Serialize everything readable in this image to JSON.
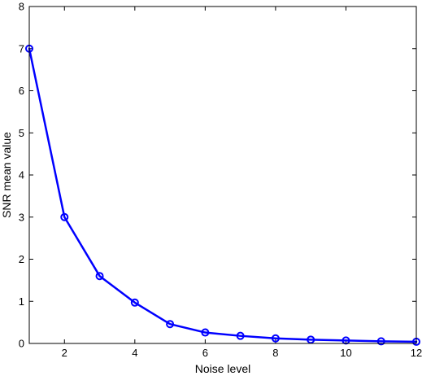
{
  "chart_data": {
    "type": "line",
    "title": "",
    "xlabel": "Noise level",
    "ylabel": "SNR mean value",
    "x": [
      1,
      2,
      3,
      4,
      5,
      6,
      7,
      8,
      9,
      10,
      11,
      12
    ],
    "series": [
      {
        "values": [
          7.0,
          3.0,
          1.6,
          0.97,
          0.46,
          0.26,
          0.18,
          0.12,
          0.09,
          0.07,
          0.05,
          0.04
        ],
        "color": "#0000ff",
        "marker": "circle"
      }
    ],
    "xlim": [
      1,
      12
    ],
    "ylim": [
      0,
      8
    ],
    "xticks": [
      2,
      4,
      6,
      8,
      10,
      12
    ],
    "yticks": [
      0,
      1,
      2,
      3,
      4,
      5,
      6,
      7,
      8
    ],
    "grid": false,
    "legend": "none"
  }
}
